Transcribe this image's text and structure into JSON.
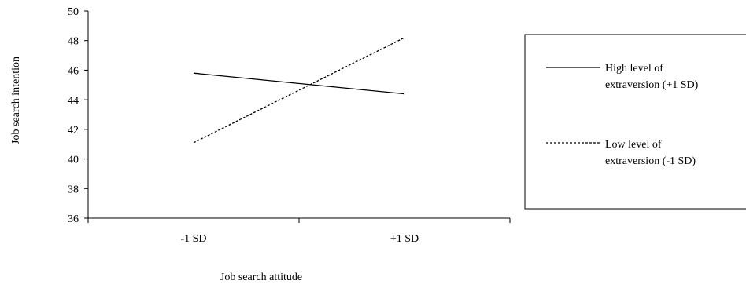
{
  "chart_data": {
    "type": "line",
    "title": "",
    "xlabel": "Job search attitude",
    "ylabel": "Job search intention",
    "categories": [
      "-1 SD",
      "+1 SD"
    ],
    "ylim": [
      36,
      50
    ],
    "yticks": [
      36,
      38,
      40,
      42,
      44,
      46,
      48,
      50
    ],
    "grid": false,
    "legend_position": "right",
    "series": [
      {
        "name_lines": [
          "High level of",
          "extraversion (+1 SD)"
        ],
        "values": [
          45.8,
          44.4
        ],
        "style": "solid",
        "color": "#000000"
      },
      {
        "name_lines": [
          "Low level of",
          "extraversion (-1 SD)"
        ],
        "values": [
          41.1,
          48.2
        ],
        "style": "dashed",
        "color": "#000000"
      }
    ]
  }
}
